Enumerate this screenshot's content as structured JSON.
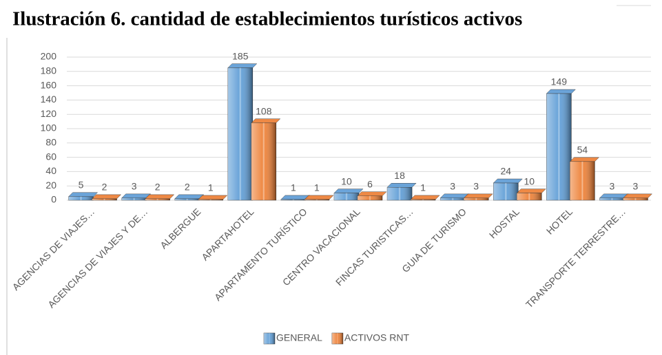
{
  "chart_data": {
    "type": "bar",
    "title": "Ilustración 6. cantidad de establecimientos turísticos activos",
    "categories": [
      "AGENCIAS DE VIAJES…",
      "AGENCIAS DE VIAJES Y DE…",
      "ALBERGUE",
      "APARTAHOTEL",
      "APARTAMENTO TURÍSTICO",
      "CENTRO VACACIONAL",
      "FINCAS TURISTICAS…",
      "GUIA DE TURISMO",
      "HOSTAL",
      "HOTEL",
      "TRANSPORTE TERRESTRE…"
    ],
    "series": [
      {
        "name": "GENERAL",
        "color": "#5b9bd5",
        "values": [
          5,
          3,
          2,
          185,
          1,
          10,
          18,
          3,
          24,
          149,
          3
        ]
      },
      {
        "name": "ACTIVOS RNT",
        "color": "#ed7d31",
        "values": [
          2,
          2,
          1,
          108,
          1,
          6,
          1,
          3,
          10,
          54,
          3
        ]
      }
    ],
    "ylim": [
      0,
      200
    ],
    "yticks": [
      0,
      20,
      40,
      60,
      80,
      100,
      120,
      140,
      160,
      180,
      200
    ],
    "grid": true,
    "legend": "bottom"
  }
}
